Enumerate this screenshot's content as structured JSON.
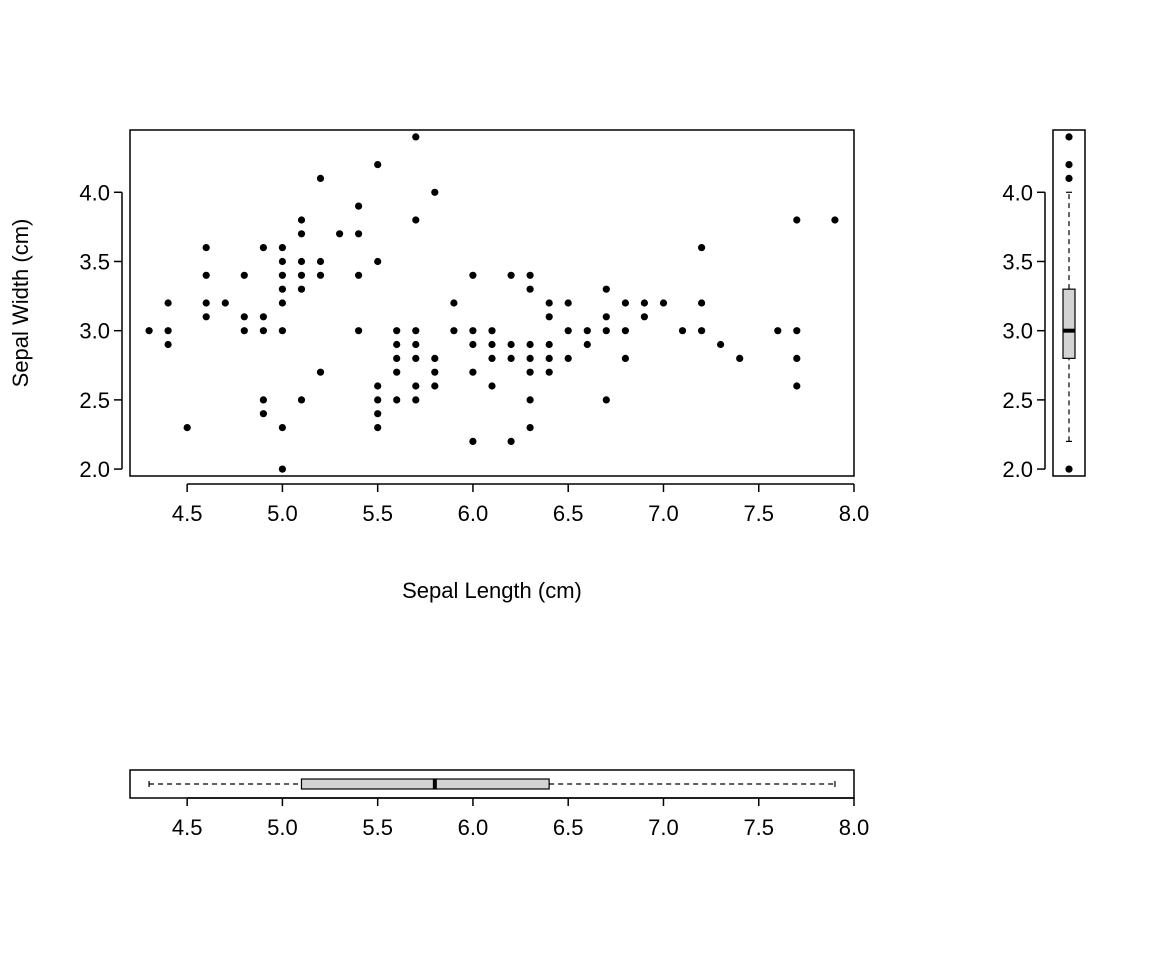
{
  "chart_data": [
    {
      "type": "scatter",
      "xlabel": "Sepal Length (cm)",
      "ylabel": "Sepal Width (cm)",
      "xlim": [
        4.2,
        8.0
      ],
      "ylim": [
        1.95,
        4.45
      ],
      "xticks": [
        "4.5",
        "5.0",
        "5.5",
        "6.0",
        "6.5",
        "7.0",
        "7.5",
        "8.0"
      ],
      "yticks": [
        "2.0",
        "2.5",
        "3.0",
        "3.5",
        "4.0"
      ],
      "point_color": "#000000",
      "points": [
        [
          4.3,
          3.0
        ],
        [
          4.4,
          3.2
        ],
        [
          4.4,
          3.0
        ],
        [
          4.4,
          2.9
        ],
        [
          4.5,
          2.3
        ],
        [
          4.6,
          3.6
        ],
        [
          4.6,
          3.4
        ],
        [
          4.6,
          3.2
        ],
        [
          4.6,
          3.1
        ],
        [
          4.7,
          3.2
        ],
        [
          4.8,
          3.4
        ],
        [
          4.8,
          3.1
        ],
        [
          4.8,
          3.0
        ],
        [
          4.9,
          3.6
        ],
        [
          4.9,
          3.1
        ],
        [
          4.9,
          3.0
        ],
        [
          4.9,
          2.5
        ],
        [
          4.9,
          2.4
        ],
        [
          5.0,
          3.6
        ],
        [
          5.0,
          3.5
        ],
        [
          5.0,
          3.4
        ],
        [
          5.0,
          3.3
        ],
        [
          5.0,
          3.2
        ],
        [
          5.0,
          3.0
        ],
        [
          5.0,
          2.3
        ],
        [
          5.0,
          2.0
        ],
        [
          5.1,
          3.8
        ],
        [
          5.1,
          3.7
        ],
        [
          5.1,
          3.5
        ],
        [
          5.1,
          3.4
        ],
        [
          5.1,
          3.3
        ],
        [
          5.1,
          2.5
        ],
        [
          5.2,
          4.1
        ],
        [
          5.2,
          3.5
        ],
        [
          5.2,
          3.4
        ],
        [
          5.2,
          2.7
        ],
        [
          5.3,
          3.7
        ],
        [
          5.4,
          3.9
        ],
        [
          5.4,
          3.7
        ],
        [
          5.4,
          3.4
        ],
        [
          5.4,
          3.0
        ],
        [
          5.5,
          4.2
        ],
        [
          5.5,
          3.5
        ],
        [
          5.5,
          2.6
        ],
        [
          5.5,
          2.5
        ],
        [
          5.5,
          2.4
        ],
        [
          5.5,
          2.3
        ],
        [
          5.6,
          3.0
        ],
        [
          5.6,
          2.9
        ],
        [
          5.6,
          2.8
        ],
        [
          5.6,
          2.7
        ],
        [
          5.6,
          2.5
        ],
        [
          5.7,
          4.4
        ],
        [
          5.7,
          3.8
        ],
        [
          5.7,
          3.0
        ],
        [
          5.7,
          2.9
        ],
        [
          5.7,
          2.8
        ],
        [
          5.7,
          2.6
        ],
        [
          5.7,
          2.5
        ],
        [
          5.8,
          4.0
        ],
        [
          5.8,
          2.8
        ],
        [
          5.8,
          2.7
        ],
        [
          5.8,
          2.6
        ],
        [
          5.9,
          3.2
        ],
        [
          5.9,
          3.0
        ],
        [
          6.0,
          3.4
        ],
        [
          6.0,
          3.0
        ],
        [
          6.0,
          2.9
        ],
        [
          6.0,
          2.7
        ],
        [
          6.0,
          2.2
        ],
        [
          6.1,
          3.0
        ],
        [
          6.1,
          2.9
        ],
        [
          6.1,
          2.8
        ],
        [
          6.1,
          2.6
        ],
        [
          6.2,
          3.4
        ],
        [
          6.2,
          2.9
        ],
        [
          6.2,
          2.8
        ],
        [
          6.2,
          2.2
        ],
        [
          6.3,
          3.4
        ],
        [
          6.3,
          3.3
        ],
        [
          6.3,
          2.9
        ],
        [
          6.3,
          2.8
        ],
        [
          6.3,
          2.7
        ],
        [
          6.3,
          2.5
        ],
        [
          6.3,
          2.3
        ],
        [
          6.4,
          3.2
        ],
        [
          6.4,
          3.1
        ],
        [
          6.4,
          2.9
        ],
        [
          6.4,
          2.8
        ],
        [
          6.4,
          2.7
        ],
        [
          6.5,
          3.2
        ],
        [
          6.5,
          3.0
        ],
        [
          6.5,
          2.8
        ],
        [
          6.6,
          3.0
        ],
        [
          6.6,
          2.9
        ],
        [
          6.7,
          3.3
        ],
        [
          6.7,
          3.1
        ],
        [
          6.7,
          3.0
        ],
        [
          6.7,
          2.5
        ],
        [
          6.8,
          3.2
        ],
        [
          6.8,
          3.0
        ],
        [
          6.8,
          2.8
        ],
        [
          6.9,
          3.2
        ],
        [
          6.9,
          3.1
        ],
        [
          7.0,
          3.2
        ],
        [
          7.1,
          3.0
        ],
        [
          7.2,
          3.6
        ],
        [
          7.2,
          3.2
        ],
        [
          7.2,
          3.0
        ],
        [
          7.3,
          2.9
        ],
        [
          7.4,
          2.8
        ],
        [
          7.6,
          3.0
        ],
        [
          7.7,
          3.8
        ],
        [
          7.7,
          3.0
        ],
        [
          7.7,
          2.8
        ],
        [
          7.7,
          2.6
        ],
        [
          7.9,
          3.8
        ]
      ]
    },
    {
      "type": "boxplot",
      "orientation": "vertical",
      "ylim": [
        1.95,
        4.45
      ],
      "yticks": [
        "2.0",
        "2.5",
        "3.0",
        "3.5",
        "4.0"
      ],
      "whisker_low": 2.2,
      "q1": 2.8,
      "median": 3.0,
      "q3": 3.3,
      "whisker_high": 4.0,
      "outliers": [
        4.4,
        4.2,
        4.1,
        2.0
      ],
      "box_color": "#d3d3d3"
    },
    {
      "type": "boxplot",
      "orientation": "horizontal",
      "xlim": [
        4.2,
        8.0
      ],
      "xticks": [
        "4.5",
        "5.0",
        "5.5",
        "6.0",
        "6.5",
        "7.0",
        "7.5",
        "8.0"
      ],
      "whisker_low": 4.3,
      "q1": 5.1,
      "median": 5.8,
      "q3": 6.4,
      "whisker_high": 7.9,
      "outliers": [],
      "box_color": "#d3d3d3"
    }
  ]
}
